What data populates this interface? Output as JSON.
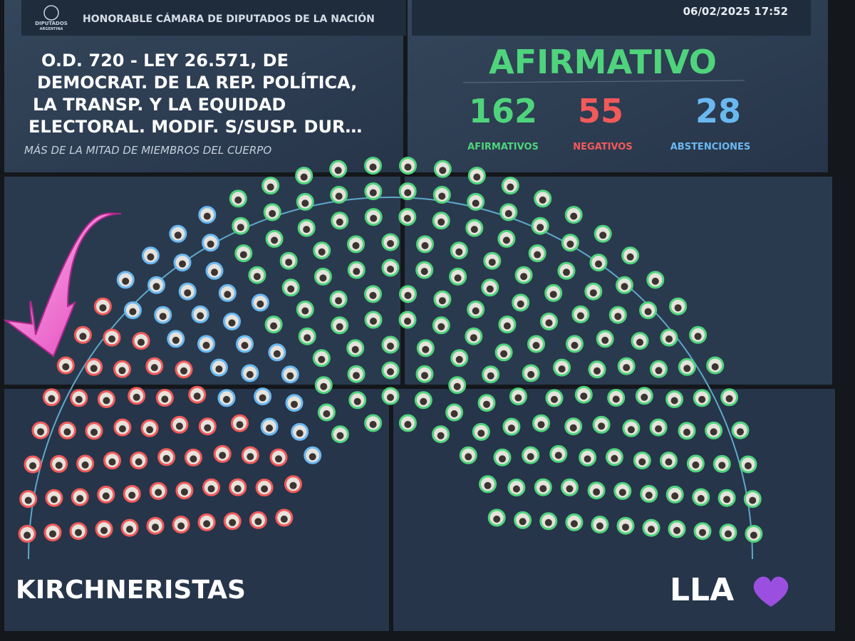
{
  "header": {
    "logo": [
      "DIPUTADOS",
      "ARGENTINA"
    ],
    "org": "HONORABLE CÁMARA DE DIPUTADOS DE LA NACIÓN",
    "datetime": "06/02/2025 17:52"
  },
  "motion": {
    "lines": [
      "O.D. 720 - LEY 26.571, DE",
      "DEMOCRAT. DE LA REP. POLÍTICA,",
      "LA TRANSP. Y LA EQUIDAD",
      "ELECTORAL. MODIF. S/SUSP. DUR…"
    ],
    "majority": "MÁS DE LA MITAD DE MIEMBROS DEL CUERPO"
  },
  "result": {
    "outcome": "AFIRMATIVO",
    "counts": [
      {
        "value": 162,
        "label": "AFIRMATIVOS",
        "color": "#4fd47c"
      },
      {
        "value": 55,
        "label": "NEGATIVOS",
        "color": "#f25a5a"
      },
      {
        "value": 28,
        "label": "ABSTENCIONES",
        "color": "#6ab8f0"
      }
    ]
  },
  "annotations": {
    "left": "KIRCHNERISTAS",
    "right": "LLA"
  }
}
